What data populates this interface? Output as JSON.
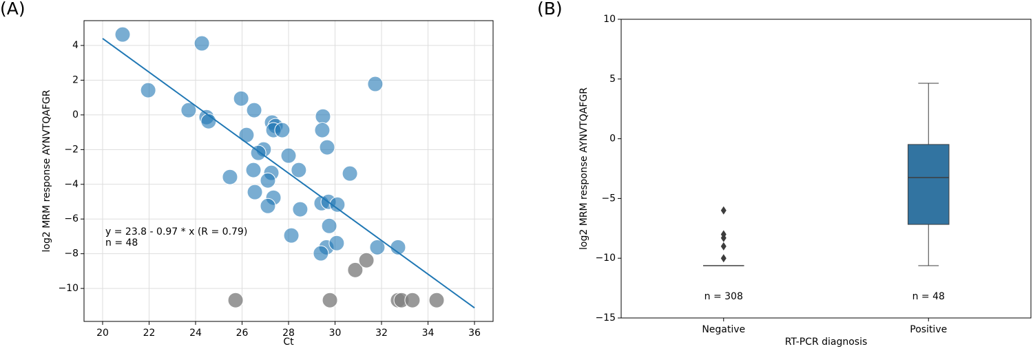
{
  "chart_data": [
    {
      "type": "scatter",
      "panel": "(A)",
      "xlabel": "Ct",
      "ylabel": "log2 MRM response AYNVTQAFGR",
      "xlim": [
        19.2,
        36.8
      ],
      "ylim": [
        -11.9,
        5.43
      ],
      "xticks": [
        20,
        22,
        24,
        26,
        28,
        30,
        32,
        34,
        36
      ],
      "yticks": [
        {
          "value": -10,
          "label": "−10"
        },
        {
          "value": -8,
          "label": "−8"
        },
        {
          "value": -6,
          "label": "−6"
        },
        {
          "value": -4,
          "label": "−4"
        },
        {
          "value": -2,
          "label": "−2"
        },
        0,
        2,
        4
      ],
      "grid": true,
      "series": [
        {
          "color": "#1f77b4",
          "x": [
            20.86,
            24.27,
            21.96,
            23.7,
            24.47,
            24.56,
            25.96,
            26.52,
            26.19,
            27.29,
            27.44,
            27.35,
            27.73,
            26.93,
            26.7,
            28.0,
            26.49,
            27.26,
            28.44,
            25.48,
            27.11,
            26.55,
            27.35,
            27.11,
            28.5,
            29.48,
            29.45,
            29.66,
            30.64,
            31.73,
            29.42,
            29.72,
            30.1,
            29.75,
            28.12,
            29.63,
            29.39,
            30.07,
            31.82,
            32.71
          ],
          "y": [
            4.63,
            4.12,
            1.42,
            0.27,
            -0.13,
            -0.37,
            0.94,
            0.27,
            -1.16,
            -0.44,
            -0.64,
            -0.88,
            -0.88,
            -1.99,
            -2.19,
            -2.35,
            -3.18,
            -3.34,
            -3.18,
            -3.58,
            -3.78,
            -4.45,
            -4.77,
            -5.25,
            -5.44,
            -0.09,
            -0.88,
            -1.87,
            -3.38,
            1.78,
            -5.09,
            -5.01,
            -5.17,
            -6.4,
            -6.95,
            -7.63,
            -7.98,
            -7.39,
            -7.63,
            -7.63
          ]
        },
        {
          "color": "#808080",
          "x": [
            25.72,
            29.78,
            30.87,
            31.35,
            32.71,
            32.86,
            33.33,
            34.37
          ],
          "y": [
            -10.68,
            -10.68,
            -8.94,
            -8.38,
            -10.68,
            -10.68,
            -10.68,
            -10.68
          ]
        }
      ],
      "fit": {
        "color": "#1f77b4",
        "x": [
          20,
          36
        ],
        "y": [
          4.4,
          -11.12
        ]
      },
      "annotations": [
        "y = 23.8 - 0.97 * x (R = 0.79)",
        "n = 48"
      ]
    },
    {
      "type": "box",
      "panel": "(B)",
      "xlabel": "RT-PCR diagnosis",
      "ylabel": "log2 MRM response AYNVTQAFGR",
      "ylim": [
        -15,
        10
      ],
      "yticks": [
        {
          "value": -15,
          "label": "−15"
        },
        {
          "value": -10,
          "label": "−10"
        },
        {
          "value": -5,
          "label": "−5"
        },
        0,
        5,
        10
      ],
      "grid": false,
      "color": "#3274a1",
      "categories": [
        "Negative",
        "Positive"
      ],
      "boxes": [
        {
          "min": -10.62,
          "q1": -10.62,
          "median": -10.62,
          "q3": -10.62,
          "max": -10.62,
          "outliers": [
            -6,
            -8,
            -8.3,
            -9,
            -10
          ]
        },
        {
          "min": -10.62,
          "q1": -7.17,
          "median": -3.25,
          "q3": -0.48,
          "max": 4.64,
          "outliers": []
        }
      ],
      "annotations": [
        "n = 308",
        "n = 48"
      ]
    }
  ]
}
